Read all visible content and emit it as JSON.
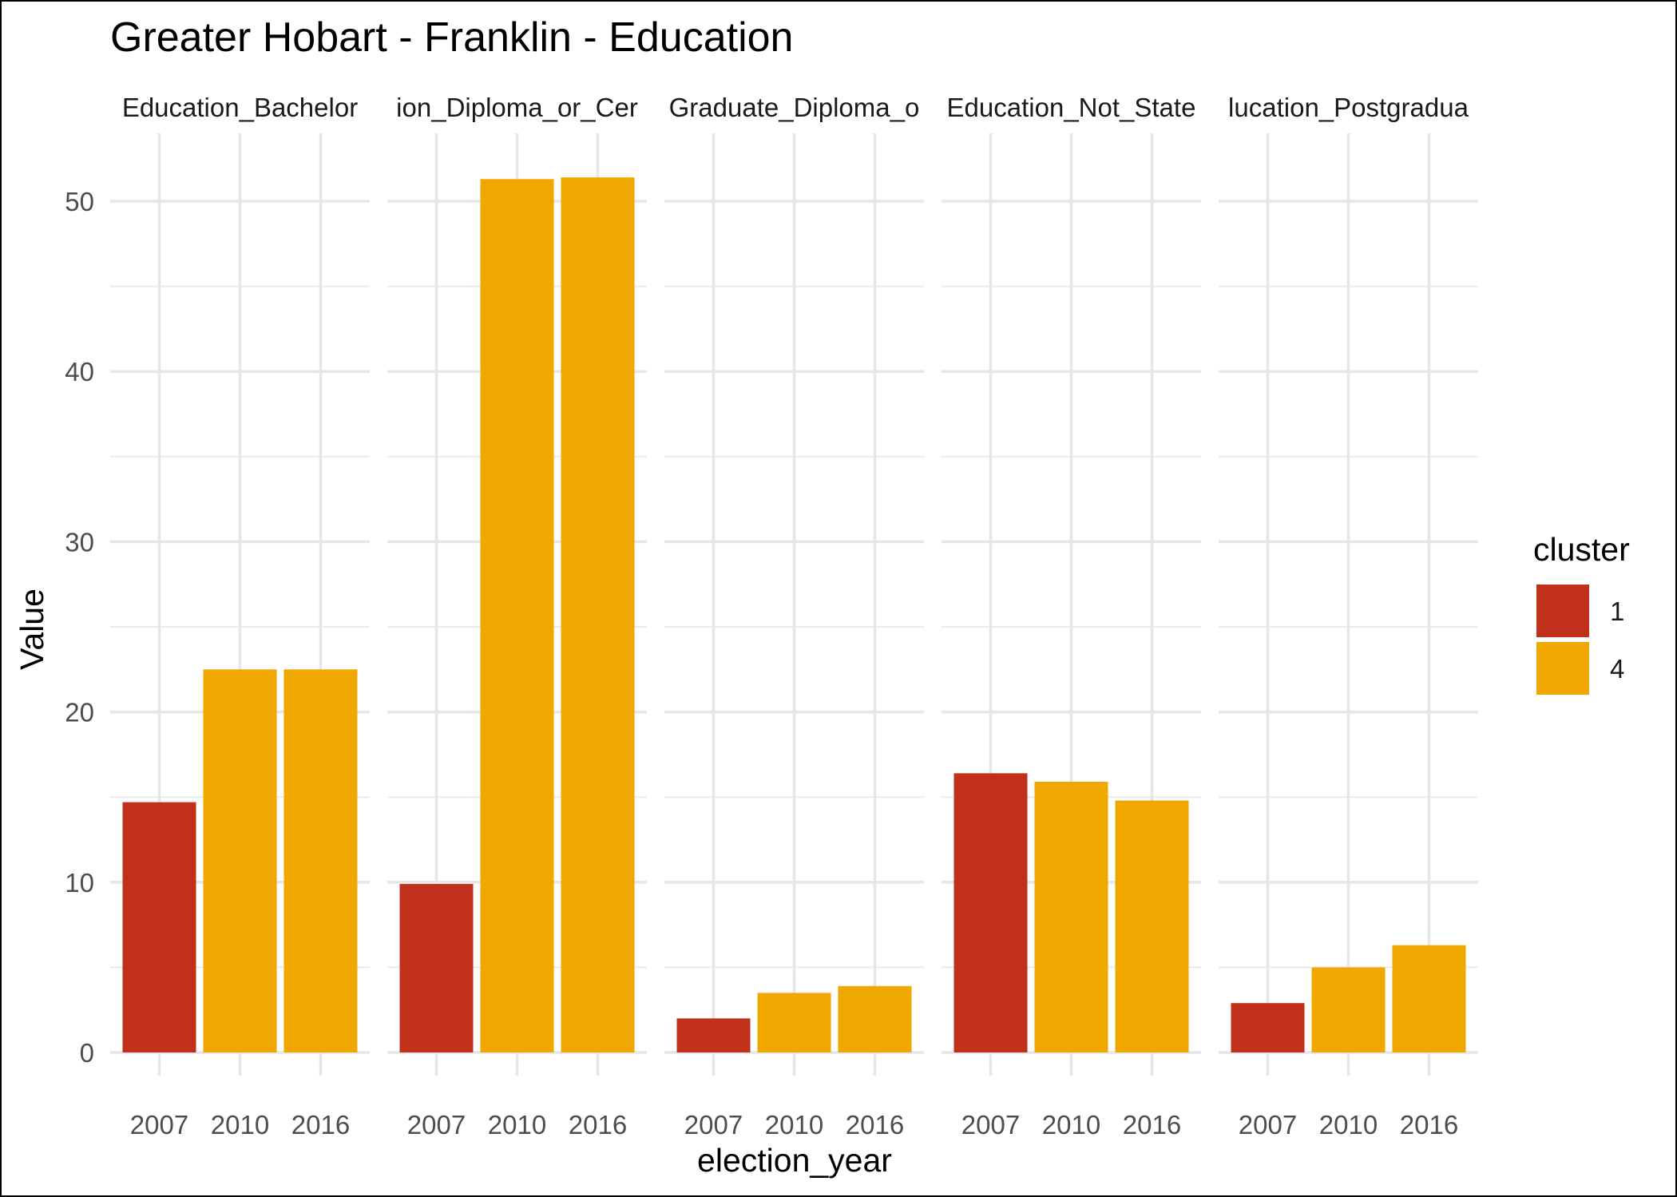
{
  "chart_data": {
    "type": "bar",
    "title": "Greater Hobart - Franklin - Education",
    "xlabel": "election_year",
    "ylabel": "Value",
    "ylim": [
      0,
      53.7
    ],
    "yticks": [
      0,
      10,
      20,
      30,
      40,
      50
    ],
    "categories": [
      "2007",
      "2010",
      "2016"
    ],
    "grid": true,
    "legend": {
      "title": "cluster",
      "placement": "right",
      "entries": [
        {
          "label": "1",
          "color": "#C1301A"
        },
        {
          "label": "4",
          "color": "#F0A800"
        }
      ]
    },
    "facets": [
      {
        "label": "Education_Bachelor",
        "values": [
          14.7,
          22.5,
          22.5
        ],
        "clusters": [
          "1",
          "4",
          "4"
        ]
      },
      {
        "label": "ion_Diploma_or_Cer",
        "values": [
          9.9,
          51.3,
          51.4
        ],
        "clusters": [
          "1",
          "4",
          "4"
        ]
      },
      {
        "label": "Graduate_Diploma_o",
        "values": [
          2.0,
          3.5,
          3.9
        ],
        "clusters": [
          "1",
          "4",
          "4"
        ]
      },
      {
        "label": "Education_Not_State",
        "values": [
          16.4,
          15.9,
          14.8
        ],
        "clusters": [
          "1",
          "4",
          "4"
        ]
      },
      {
        "label": "lucation_Postgradua",
        "values": [
          2.9,
          5.0,
          6.3
        ],
        "clusters": [
          "1",
          "4",
          "4"
        ]
      }
    ]
  }
}
